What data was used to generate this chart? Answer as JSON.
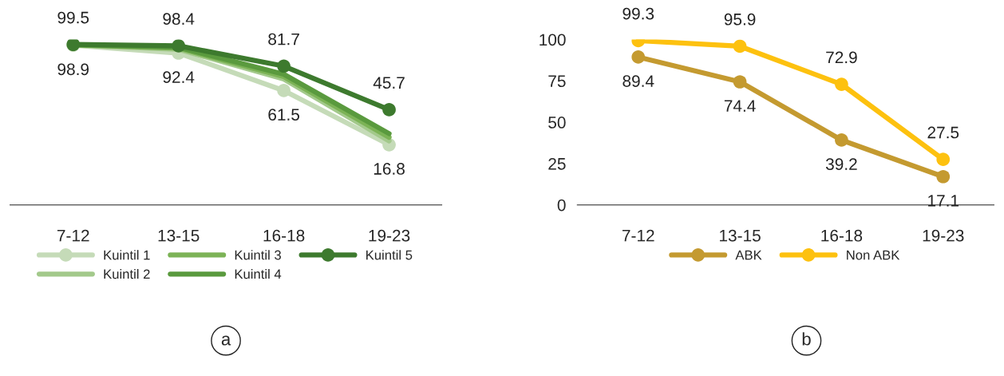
{
  "chart_data": [
    {
      "type": "line",
      "categories": [
        "7-12",
        "13-15",
        "16-18",
        "19-23"
      ],
      "tick_labels": "x",
      "legend": "bottom",
      "annotations": [
        "a"
      ],
      "series": [
        {
          "name": "Kuintil 1",
          "color": "#c5dbb8",
          "values": [
            98.9,
            92.4,
            61.5,
            16.8
          ],
          "value_labels": [
            "98.9",
            "92.4",
            "61.5",
            "16.8"
          ],
          "marker": "circle"
        },
        {
          "name": "Kuintil 2",
          "color": "#a3c98b",
          "values": [
            99.1,
            95.5,
            71,
            20
          ],
          "marker": "none"
        },
        {
          "name": "Kuintil 3",
          "color": "#7cb356",
          "values": [
            99.2,
            96.5,
            73,
            23
          ],
          "marker": "none"
        },
        {
          "name": "Kuintil 4",
          "color": "#5a9a3e",
          "values": [
            99.3,
            97.2,
            75,
            26
          ],
          "marker": "none"
        },
        {
          "name": "Kuintil 5",
          "color": "#3d7a2e",
          "values": [
            99.5,
            98.4,
            81.7,
            45.7
          ],
          "value_labels": [
            "99.5",
            "98.4",
            "81.7",
            "45.7"
          ],
          "marker": "circle"
        }
      ]
    },
    {
      "type": "line",
      "categories": [
        "7-12",
        "13-15",
        "16-18",
        "19-23"
      ],
      "ylim": [
        0,
        100
      ],
      "yticks": [
        0,
        25,
        50,
        75,
        100
      ],
      "legend": "bottom",
      "annotations": [
        "b"
      ],
      "series": [
        {
          "name": "ABK",
          "color": "#c49a30",
          "values": [
            89.4,
            74.4,
            39.2,
            17.1
          ],
          "value_labels": [
            "89.4",
            "74.4",
            "39.2",
            "17.1"
          ],
          "marker": "circle"
        },
        {
          "name": "Non ABK",
          "color": "#fdc10f",
          "values": [
            99.3,
            95.9,
            72.9,
            27.5
          ],
          "value_labels": [
            "99.3",
            "95.9",
            "72.9",
            "27.5"
          ],
          "marker": "circle"
        }
      ]
    }
  ]
}
